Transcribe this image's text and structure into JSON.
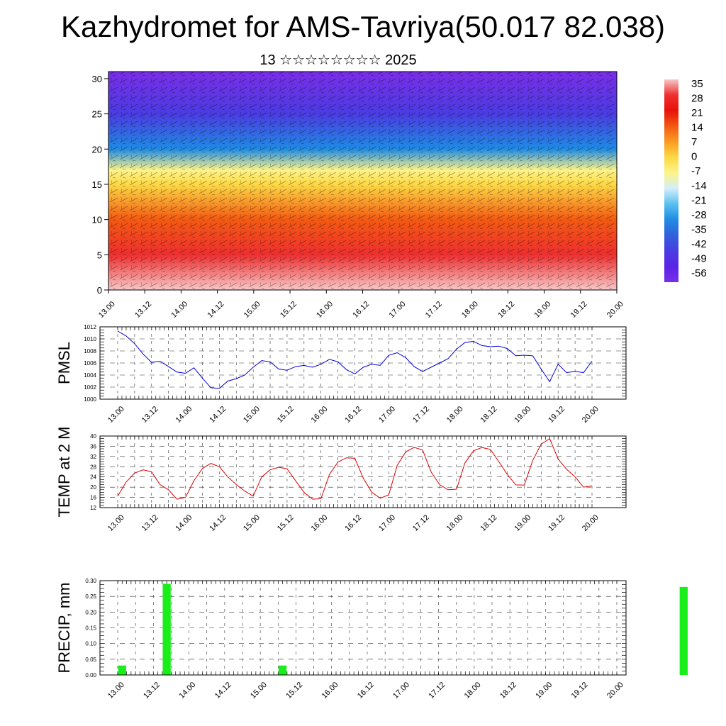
{
  "header": {
    "title": "Kazhydromet for AMS-Tavriya(50.017 82.038)",
    "subtitle": "13 ☆☆☆☆☆☆☆☆ 2025"
  },
  "time_labels": [
    "13.00",
    "13.12",
    "14.00",
    "14.12",
    "15.00",
    "15.12",
    "16.00",
    "16.12",
    "17.00",
    "17.12",
    "18.00",
    "18.12",
    "19.00",
    "19.12",
    "20.00"
  ],
  "chart_data": [
    {
      "type": "heatmap",
      "title": "Kazhydromet for AMS-Tavriya(50.017 82.038)",
      "subtitle": "13 ☆☆☆☆☆☆☆☆ 2025",
      "x_ticks": [
        "13.00",
        "13.12",
        "14.00",
        "14.12",
        "15.00",
        "15.12",
        "16.00",
        "16.12",
        "17.00",
        "17.12",
        "18.00",
        "18.12",
        "19.00",
        "19.12",
        "20.00"
      ],
      "y_ticks": [
        0,
        5,
        10,
        15,
        20,
        25,
        30
      ],
      "ylim": [
        0,
        31
      ],
      "colorbar_labels": [
        "35",
        "28",
        "21",
        "14",
        "7",
        "0",
        "-7",
        "-14",
        "-21",
        "-28",
        "-35",
        "-42",
        "-49",
        "-56"
      ],
      "colorbar_colors": [
        "#f7c7c7",
        "#ee2f2f",
        "#e8120a",
        "#f35a12",
        "#fb9c22",
        "#fcd945",
        "#fdf48a",
        "#d3eefa",
        "#59bff0",
        "#1f8be3",
        "#3360dc",
        "#4a3ce2",
        "#5a24e6",
        "#7a2ee8"
      ],
      "vertical_profile": [
        {
          "y": 0,
          "value": 34
        },
        {
          "y": 5,
          "value": 28
        },
        {
          "y": 10,
          "value": 14
        },
        {
          "y": 15,
          "value": 0
        },
        {
          "y": 17,
          "value": -10
        },
        {
          "y": 20,
          "value": -28
        },
        {
          "y": 25,
          "value": -45
        },
        {
          "y": 31,
          "value": -55
        }
      ]
    },
    {
      "type": "line",
      "ylabel": "PMSL",
      "ylim": [
        1000,
        1012
      ],
      "y_ticks": [
        1000,
        1002,
        1004,
        1006,
        1008,
        1010,
        1012
      ],
      "x_ticks": [
        "13.00",
        "13.12",
        "14.00",
        "14.12",
        "15.00",
        "15.12",
        "16.00",
        "16.12",
        "17.00",
        "17.12",
        "18.00",
        "18.12",
        "19.00",
        "19.12",
        "20.00"
      ],
      "line_color": "#0000dd",
      "values": [
        1011.3,
        1010.5,
        1009.2,
        1007.5,
        1006.1,
        1006.3,
        1005.4,
        1004.5,
        1004.3,
        1005.2,
        1003.5,
        1001.9,
        1001.8,
        1003.0,
        1003.4,
        1004.0,
        1005.3,
        1006.4,
        1006.2,
        1005.0,
        1004.8,
        1005.4,
        1005.6,
        1005.3,
        1005.8,
        1006.6,
        1006.2,
        1004.9,
        1004.2,
        1005.3,
        1005.8,
        1005.6,
        1007.3,
        1007.7,
        1006.9,
        1005.4,
        1004.6,
        1005.3,
        1006.0,
        1006.7,
        1008.3,
        1009.4,
        1009.6,
        1008.9,
        1008.7,
        1008.8,
        1008.4,
        1007.2,
        1007.3,
        1007.2,
        1005.0,
        1002.9,
        1005.8,
        1004.4,
        1004.6,
        1004.4,
        1006.3
      ]
    },
    {
      "type": "line",
      "ylabel": "TEMP at 2 M",
      "ylim": [
        12,
        40
      ],
      "y_ticks": [
        12,
        16,
        20,
        24,
        28,
        32,
        36,
        40
      ],
      "x_ticks": [
        "13.00",
        "13.12",
        "14.00",
        "14.12",
        "15.00",
        "15.12",
        "16.00",
        "16.12",
        "17.00",
        "17.12",
        "18.00",
        "18.12",
        "19.00",
        "19.12",
        "20.00"
      ],
      "line_color": "#dd0000",
      "values": [
        16.5,
        22,
        25.5,
        26.8,
        26,
        21,
        19,
        15.3,
        16,
        22.5,
        27.3,
        29.3,
        28,
        24,
        21,
        18.5,
        16.5,
        24,
        26.8,
        27.8,
        27.2,
        22.5,
        18,
        15.3,
        15.5,
        25,
        29.8,
        31.5,
        31.3,
        23.5,
        18,
        15.7,
        17,
        28.5,
        33.8,
        35.6,
        34.5,
        26,
        21,
        19,
        19.2,
        29.5,
        34.2,
        35.5,
        34.8,
        30,
        25,
        20.9,
        20.8,
        30.5,
        36.8,
        39,
        31,
        27,
        24,
        20,
        20.5
      ]
    },
    {
      "type": "bar",
      "ylabel": "PRECIP, mm",
      "ylim": [
        0,
        0.3
      ],
      "y_ticks": [
        "0.00",
        "0.05",
        "0.10",
        "0.15",
        "0.20",
        "0.25",
        "0.30"
      ],
      "x_ticks": [
        "13.00",
        "13.12",
        "14.00",
        "14.12",
        "15.00",
        "15.12",
        "16.00",
        "16.12",
        "17.00",
        "17.12",
        "18.00",
        "18.12",
        "19.00",
        "19.12",
        "20.00"
      ],
      "bar_color": "#1aee1a",
      "bars": [
        {
          "x": 0.5,
          "value": 0.03
        },
        {
          "x": 5.5,
          "value": 0.29
        },
        {
          "x": 18.5,
          "value": 0.03
        },
        {
          "x": 63.5,
          "value": 0.28
        }
      ]
    }
  ]
}
